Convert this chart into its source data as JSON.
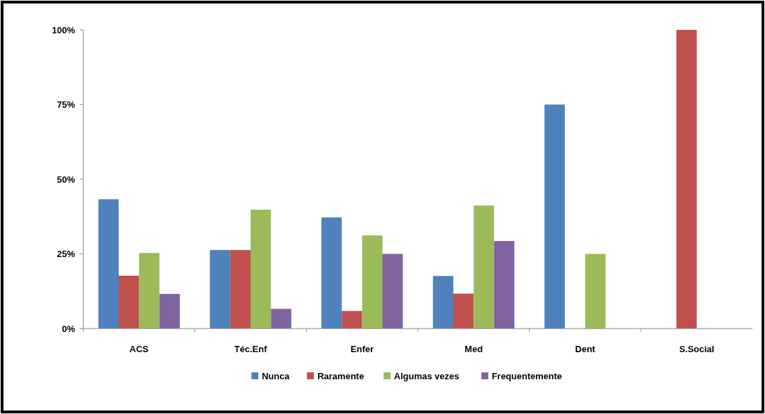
{
  "chart_data": {
    "type": "bar",
    "categories": [
      "ACS",
      "Téc.Enf",
      "Enfer",
      "Med",
      "Dent",
      "S.Social"
    ],
    "series": [
      {
        "name": "Nunca",
        "color": "#4f81bd",
        "values": [
          43.3,
          26.3,
          37.2,
          17.6,
          75,
          0
        ]
      },
      {
        "name": "Raramente",
        "color": "#c0504d",
        "values": [
          17.7,
          26.3,
          5.9,
          11.7,
          0,
          100
        ]
      },
      {
        "name": "Algumas vezes",
        "color": "#9bbb59",
        "values": [
          25.3,
          39.8,
          31.2,
          41.2,
          25,
          0
        ]
      },
      {
        "name": "Frequentemente",
        "color": "#8064a2",
        "values": [
          11.6,
          6.6,
          25,
          29.3,
          0,
          0
        ]
      }
    ],
    "ylim": [
      0,
      100
    ],
    "yticks": [
      {
        "value": 0,
        "label": "0%"
      },
      {
        "value": 25,
        "label": "25%"
      },
      {
        "value": 50,
        "label": "50%"
      },
      {
        "value": 75,
        "label": "75%"
      },
      {
        "value": 100,
        "label": "100%"
      }
    ],
    "grid": false,
    "legend": "bottom"
  }
}
